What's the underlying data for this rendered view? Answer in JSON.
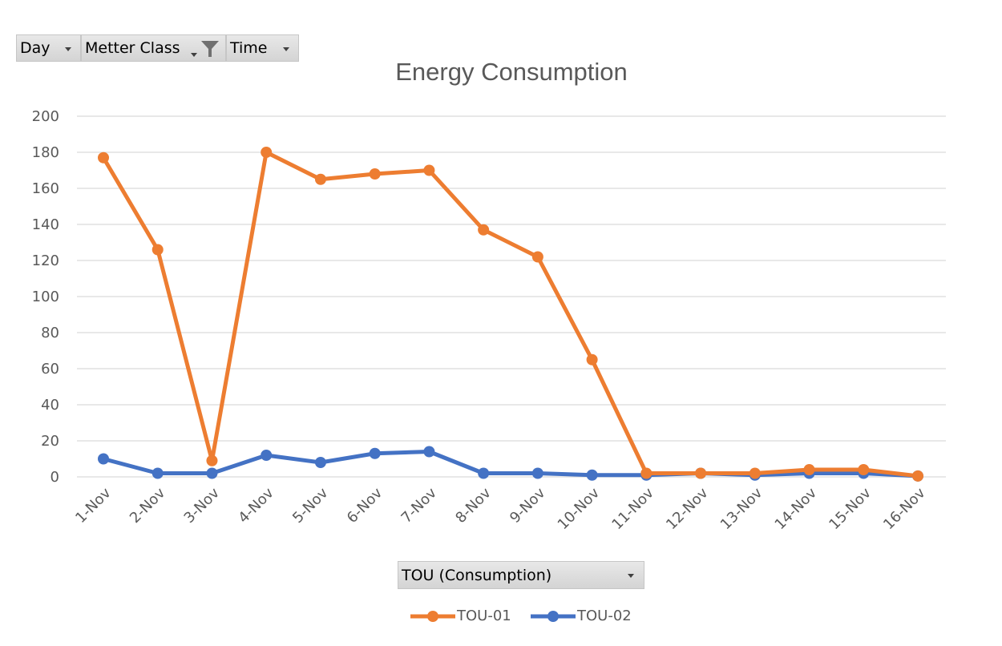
{
  "filters": {
    "day_label": "Day",
    "meter_class_label": "Metter Class",
    "time_label": "Time",
    "tou_dropdown_label": "TOU (Consumption)"
  },
  "colors": {
    "tou01": "#ed7d31",
    "tou02": "#4472c4",
    "grid": "#d9d9d9"
  },
  "chart_data": {
    "type": "line",
    "title": "Energy Consumption",
    "xlabel": "",
    "ylabel": "",
    "categories": [
      "1-Nov",
      "2-Nov",
      "3-Nov",
      "4-Nov",
      "5-Nov",
      "6-Nov",
      "7-Nov",
      "8-Nov",
      "9-Nov",
      "10-Nov",
      "11-Nov",
      "12-Nov",
      "13-Nov",
      "14-Nov",
      "15-Nov",
      "16-Nov"
    ],
    "yticks": [
      "0",
      "20",
      "40",
      "60",
      "80",
      "100",
      "120",
      "140",
      "160",
      "180",
      "200"
    ],
    "ylim": [
      0,
      200
    ],
    "grid": true,
    "legend_position": "bottom",
    "series": [
      {
        "name": "TOU-01",
        "values": [
          177,
          126,
          9,
          180,
          165,
          168,
          170,
          137,
          122,
          65,
          2,
          2,
          2,
          4,
          4,
          0.5
        ]
      },
      {
        "name": "TOU-02",
        "values": [
          10,
          2,
          2,
          12,
          8,
          13,
          14,
          2,
          2,
          1,
          1,
          2,
          1,
          2,
          2,
          0.5
        ]
      }
    ]
  }
}
